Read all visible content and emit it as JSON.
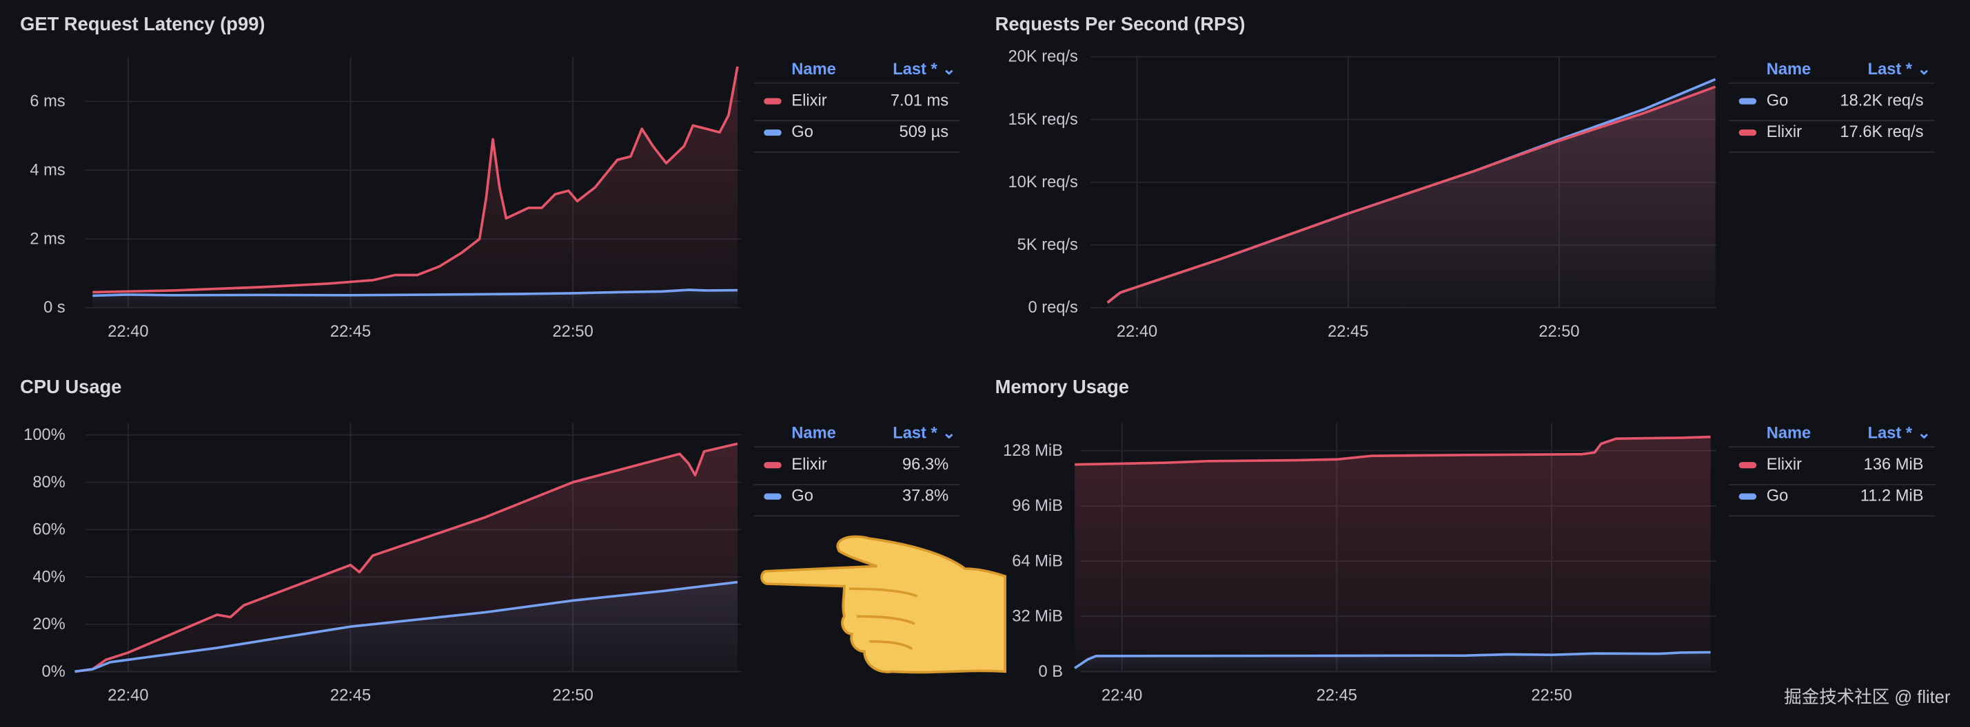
{
  "colors": {
    "elixir": "#e5566b",
    "go": "#77a1f2",
    "legend_header": "#6e9fff",
    "background": "#111217"
  },
  "watermark": "掘金技术社区 @ fliter",
  "chart_data": [
    {
      "type": "line",
      "title": "GET Request Latency (p99)",
      "ylabel": "",
      "xlabel": "",
      "ylim": [
        0,
        7.3
      ],
      "yticks": [
        {
          "v": 0,
          "label": "0 s"
        },
        {
          "v": 2,
          "label": "2 ms"
        },
        {
          "v": 4,
          "label": "4 ms"
        },
        {
          "v": 6,
          "label": "6 ms"
        }
      ],
      "xticks": [
        {
          "t": 40,
          "label": "22:40"
        },
        {
          "t": 45,
          "label": "22:45"
        },
        {
          "t": 50,
          "label": "22:50"
        }
      ],
      "x_unit": "minutes after 22:00",
      "legend": {
        "header_name": "Name",
        "header_last": "Last *",
        "rows": [
          {
            "name": "Elixir",
            "last": "7.01 ms",
            "color": "#e5566b"
          },
          {
            "name": "Go",
            "last": "509 µs",
            "color": "#77a1f2"
          }
        ]
      },
      "series": [
        {
          "name": "Elixir",
          "unit": "ms",
          "color": "#e5566b",
          "points": [
            [
              39.2,
              0.45
            ],
            [
              41,
              0.5
            ],
            [
              43,
              0.6
            ],
            [
              44.5,
              0.7
            ],
            [
              45.5,
              0.8
            ],
            [
              46,
              0.95
            ],
            [
              46.5,
              0.95
            ],
            [
              47,
              1.2
            ],
            [
              47.5,
              1.6
            ],
            [
              47.9,
              2.0
            ],
            [
              48.05,
              3.2
            ],
            [
              48.2,
              4.9
            ],
            [
              48.35,
              3.5
            ],
            [
              48.5,
              2.6
            ],
            [
              49,
              2.9
            ],
            [
              49.3,
              2.9
            ],
            [
              49.6,
              3.3
            ],
            [
              49.9,
              3.4
            ],
            [
              50.1,
              3.1
            ],
            [
              50.5,
              3.5
            ],
            [
              51,
              4.3
            ],
            [
              51.3,
              4.4
            ],
            [
              51.55,
              5.2
            ],
            [
              51.8,
              4.7
            ],
            [
              52.1,
              4.2
            ],
            [
              52.5,
              4.7
            ],
            [
              52.7,
              5.3
            ],
            [
              53,
              5.2
            ],
            [
              53.3,
              5.1
            ],
            [
              53.5,
              5.6
            ],
            [
              53.7,
              7.01
            ]
          ]
        },
        {
          "name": "Go",
          "unit": "ms",
          "color": "#77a1f2",
          "points": [
            [
              39.2,
              0.35
            ],
            [
              40,
              0.38
            ],
            [
              41,
              0.36
            ],
            [
              43,
              0.37
            ],
            [
              45,
              0.36
            ],
            [
              47,
              0.38
            ],
            [
              49,
              0.4
            ],
            [
              50,
              0.42
            ],
            [
              51,
              0.45
            ],
            [
              52,
              0.47
            ],
            [
              52.6,
              0.52
            ],
            [
              53,
              0.5
            ],
            [
              53.7,
              0.509
            ]
          ]
        }
      ]
    },
    {
      "type": "line",
      "title": "Requests Per Second (RPS)",
      "ylabel": "",
      "xlabel": "",
      "ylim": [
        0,
        20
      ],
      "yticks": [
        {
          "v": 0,
          "label": "0 req/s"
        },
        {
          "v": 5,
          "label": "5K req/s"
        },
        {
          "v": 10,
          "label": "10K req/s"
        },
        {
          "v": 15,
          "label": "15K req/s"
        },
        {
          "v": 20,
          "label": "20K req/s"
        }
      ],
      "xticks": [
        {
          "t": 40,
          "label": "22:40"
        },
        {
          "t": 45,
          "label": "22:45"
        },
        {
          "t": 50,
          "label": "22:50"
        }
      ],
      "x_unit": "minutes after 22:00",
      "legend": {
        "header_name": "Name",
        "header_last": "Last *",
        "rows": [
          {
            "name": "Go",
            "last": "18.2K req/s",
            "color": "#77a1f2"
          },
          {
            "name": "Elixir",
            "last": "17.6K req/s",
            "color": "#e5566b"
          }
        ]
      },
      "series": [
        {
          "name": "Go",
          "unit": "K req/s",
          "color": "#77a1f2",
          "points": [
            [
              39.3,
              0.4
            ],
            [
              39.6,
              1.2
            ],
            [
              42,
              3.9
            ],
            [
              45,
              7.5
            ],
            [
              48,
              10.9
            ],
            [
              50,
              13.4
            ],
            [
              52,
              15.8
            ],
            [
              53.7,
              18.2
            ]
          ]
        },
        {
          "name": "Elixir",
          "unit": "K req/s",
          "color": "#e5566b",
          "points": [
            [
              39.3,
              0.4
            ],
            [
              39.6,
              1.2
            ],
            [
              42,
              3.9
            ],
            [
              45,
              7.5
            ],
            [
              48,
              10.9
            ],
            [
              50,
              13.3
            ],
            [
              52,
              15.5
            ],
            [
              53.7,
              17.6
            ]
          ]
        }
      ]
    },
    {
      "type": "line",
      "title": "CPU Usage",
      "ylabel": "",
      "xlabel": "",
      "ylim": [
        0,
        105
      ],
      "yticks": [
        {
          "v": 0,
          "label": "0%"
        },
        {
          "v": 20,
          "label": "20%"
        },
        {
          "v": 40,
          "label": "40%"
        },
        {
          "v": 60,
          "label": "60%"
        },
        {
          "v": 80,
          "label": "80%"
        },
        {
          "v": 100,
          "label": "100%"
        }
      ],
      "xticks": [
        {
          "t": 40,
          "label": "22:40"
        },
        {
          "t": 45,
          "label": "22:45"
        },
        {
          "t": 50,
          "label": "22:50"
        }
      ],
      "x_unit": "minutes after 22:00",
      "legend": {
        "header_name": "Name",
        "header_last": "Last *",
        "rows": [
          {
            "name": "Elixir",
            "last": "96.3%",
            "color": "#e5566b"
          },
          {
            "name": "Go",
            "last": "37.8%",
            "color": "#77a1f2"
          }
        ]
      },
      "series": [
        {
          "name": "Elixir",
          "unit": "%",
          "color": "#e5566b",
          "points": [
            [
              38.8,
              0
            ],
            [
              39.2,
              1
            ],
            [
              39.5,
              5
            ],
            [
              40,
              8
            ],
            [
              42,
              24
            ],
            [
              42.3,
              23
            ],
            [
              42.6,
              28
            ],
            [
              45,
              45
            ],
            [
              45.2,
              42
            ],
            [
              45.5,
              49
            ],
            [
              48,
              65
            ],
            [
              50,
              80
            ],
            [
              52.4,
              92
            ],
            [
              52.6,
              88
            ],
            [
              52.75,
              83
            ],
            [
              52.95,
              93
            ],
            [
              53.7,
              96.3
            ]
          ]
        },
        {
          "name": "Go",
          "unit": "%",
          "color": "#77a1f2",
          "points": [
            [
              38.8,
              0
            ],
            [
              39.2,
              1
            ],
            [
              39.6,
              4
            ],
            [
              40,
              5
            ],
            [
              42,
              10
            ],
            [
              45,
              19
            ],
            [
              48,
              25
            ],
            [
              50,
              30
            ],
            [
              52,
              34
            ],
            [
              53.7,
              37.8
            ]
          ]
        }
      ]
    },
    {
      "type": "line",
      "title": "Memory Usage",
      "ylabel": "",
      "xlabel": "",
      "ylim": [
        0,
        144
      ],
      "yticks": [
        {
          "v": 0,
          "label": "0 B"
        },
        {
          "v": 32,
          "label": "32 MiB"
        },
        {
          "v": 64,
          "label": "64 MiB"
        },
        {
          "v": 96,
          "label": "96 MiB"
        },
        {
          "v": 128,
          "label": "128 MiB"
        }
      ],
      "xticks": [
        {
          "t": 40,
          "label": "22:40"
        },
        {
          "t": 45,
          "label": "22:45"
        },
        {
          "t": 50,
          "label": "22:50"
        }
      ],
      "x_unit": "minutes after 22:00",
      "legend": {
        "header_name": "Name",
        "header_last": "Last *",
        "rows": [
          {
            "name": "Elixir",
            "last": "136 MiB",
            "color": "#e5566b"
          },
          {
            "name": "Go",
            "last": "11.2 MiB",
            "color": "#77a1f2"
          }
        ]
      },
      "series": [
        {
          "name": "Elixir",
          "unit": "MiB",
          "color": "#e5566b",
          "points": [
            [
              38.9,
              120
            ],
            [
              40,
              120.5
            ],
            [
              41,
              121
            ],
            [
              42,
              122
            ],
            [
              44,
              122.5
            ],
            [
              45,
              123
            ],
            [
              45.8,
              125
            ],
            [
              48,
              125.5
            ],
            [
              50.7,
              126
            ],
            [
              51,
              127
            ],
            [
              51.15,
              132
            ],
            [
              51.5,
              135
            ],
            [
              53,
              135.5
            ],
            [
              53.7,
              136
            ]
          ]
        },
        {
          "name": "Go",
          "unit": "MiB",
          "color": "#77a1f2",
          "points": [
            [
              38.9,
              2
            ],
            [
              39.2,
              7
            ],
            [
              39.4,
              9
            ],
            [
              45,
              9.2
            ],
            [
              48,
              9.3
            ],
            [
              49,
              10
            ],
            [
              50,
              9.7
            ],
            [
              51,
              10.5
            ],
            [
              52.5,
              10.3
            ],
            [
              53,
              11
            ],
            [
              53.7,
              11.2
            ]
          ]
        }
      ]
    }
  ]
}
